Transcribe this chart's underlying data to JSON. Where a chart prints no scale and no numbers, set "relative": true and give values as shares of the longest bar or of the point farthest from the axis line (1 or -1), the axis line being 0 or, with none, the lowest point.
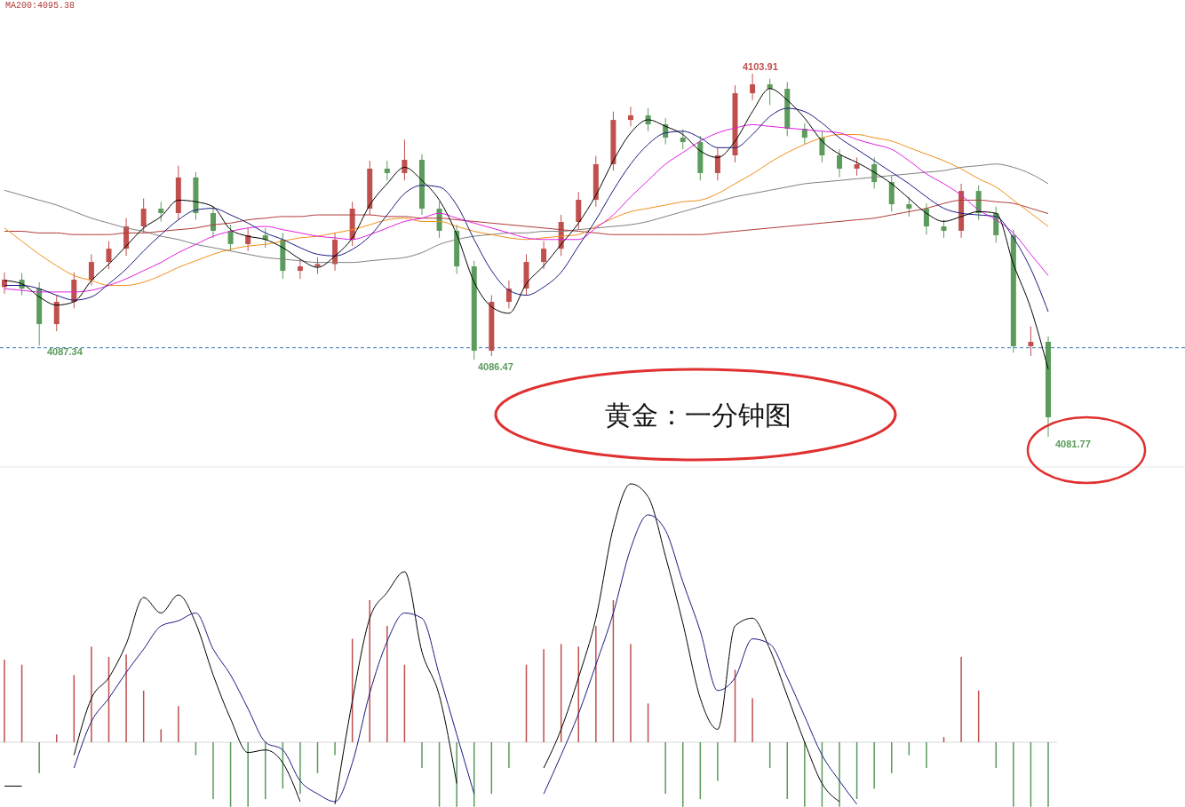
{
  "chart_data": [
    {
      "type": "candlestick",
      "categories": [
        null,
        null,
        null,
        null,
        null,
        null,
        null,
        null,
        null,
        null,
        null,
        null,
        null,
        null,
        null,
        null,
        null,
        null,
        null,
        null,
        null,
        null,
        null,
        null,
        null,
        null,
        null,
        null,
        null,
        null,
        null,
        null,
        null,
        null,
        null,
        null,
        null,
        null,
        null,
        null,
        null,
        null,
        null,
        null,
        null,
        null,
        null,
        null,
        null,
        null,
        null,
        null,
        null,
        null,
        null,
        null,
        null,
        null,
        null,
        null,
        null
      ],
      "ohlc": [
        [
          4090.9,
          4091.8,
          4090.5,
          4091.35
        ],
        [
          4091.35,
          4091.75,
          4090.4,
          4090.81
        ],
        [
          4090.81,
          4091.2,
          4087.34,
          4088.64
        ],
        [
          4088.64,
          4090.4,
          4088.2,
          4090.0
        ],
        [
          4090.0,
          4091.8,
          4089.6,
          4091.35
        ],
        [
          4091.35,
          4092.9,
          4091.0,
          4092.43
        ],
        [
          4092.43,
          4093.7,
          4092.0,
          4093.24
        ],
        [
          4093.24,
          4095.1,
          4092.8,
          4094.6
        ],
        [
          4094.6,
          4096.3,
          4094.2,
          4095.68
        ],
        [
          4095.68,
          4096.1,
          4094.9,
          4095.41
        ],
        [
          4095.41,
          4098.3,
          4095.0,
          4097.58
        ],
        [
          4097.58,
          4097.9,
          4095.0,
          4095.41
        ],
        [
          4095.41,
          4095.8,
          4093.9,
          4094.33
        ],
        [
          4094.33,
          4094.7,
          4093.1,
          4093.52
        ],
        [
          4093.52,
          4094.5,
          4093.1,
          4094.06
        ],
        [
          4094.06,
          4094.5,
          4093.3,
          4093.79
        ],
        [
          4093.79,
          4094.2,
          4091.4,
          4091.89
        ],
        [
          4091.89,
          4092.6,
          4091.4,
          4092.16
        ],
        [
          4092.16,
          4092.7,
          4091.7,
          4092.3
        ],
        [
          4092.3,
          4094.2,
          4091.9,
          4093.79
        ],
        [
          4093.79,
          4096.1,
          4093.4,
          4095.68
        ],
        [
          4095.68,
          4098.6,
          4095.3,
          4098.12
        ],
        [
          4098.12,
          4098.6,
          4097.4,
          4097.85
        ],
        [
          4097.85,
          4099.9,
          4097.4,
          4098.66
        ],
        [
          4098.66,
          4099.0,
          4095.3,
          4095.68
        ],
        [
          4095.68,
          4096.1,
          4093.9,
          4094.33
        ],
        [
          4094.33,
          4094.7,
          4091.7,
          4092.16
        ],
        [
          4092.16,
          4092.5,
          4086.47,
          4087.02
        ],
        [
          4087.02,
          4090.4,
          4086.7,
          4090.0
        ],
        [
          4090.0,
          4091.3,
          4089.6,
          4090.81
        ],
        [
          4090.81,
          4092.9,
          4090.4,
          4092.43
        ],
        [
          4092.43,
          4093.7,
          4092.0,
          4093.24
        ],
        [
          4093.24,
          4095.3,
          4092.8,
          4094.87
        ],
        [
          4094.87,
          4096.7,
          4094.4,
          4096.22
        ],
        [
          4096.22,
          4098.9,
          4095.8,
          4098.39
        ],
        [
          4098.39,
          4101.6,
          4098.0,
          4101.09
        ],
        [
          4101.09,
          4101.9,
          4100.7,
          4101.37
        ],
        [
          4101.37,
          4101.8,
          4100.4,
          4100.82
        ],
        [
          4100.82,
          4101.2,
          4099.6,
          4100.01
        ],
        [
          4100.01,
          4100.5,
          4099.3,
          4099.74
        ],
        [
          4099.74,
          4100.1,
          4097.4,
          4097.85
        ],
        [
          4097.85,
          4099.4,
          4097.4,
          4098.93
        ],
        [
          4098.93,
          4103.2,
          4098.5,
          4102.72
        ],
        [
          4102.72,
          4103.91,
          4102.3,
          4103.26
        ],
        [
          4103.26,
          4103.6,
          4102.0,
          4102.99
        ],
        [
          4102.99,
          4103.4,
          4100.1,
          4100.55
        ],
        [
          4100.55,
          4100.9,
          4099.6,
          4100.01
        ],
        [
          4100.01,
          4100.4,
          4098.5,
          4098.93
        ],
        [
          4098.93,
          4099.3,
          4097.6,
          4098.12
        ],
        [
          4098.12,
          4098.8,
          4097.7,
          4098.39
        ],
        [
          4098.39,
          4098.8,
          4096.9,
          4097.3
        ],
        [
          4097.3,
          4097.7,
          4095.5,
          4095.95
        ],
        [
          4095.95,
          4096.4,
          4095.2,
          4095.68
        ],
        [
          4095.68,
          4096.0,
          4094.1,
          4094.6
        ],
        [
          4094.6,
          4095.0,
          4093.9,
          4094.33
        ],
        [
          4094.33,
          4097.2,
          4093.9,
          4096.76
        ],
        [
          4096.76,
          4097.1,
          4095.0,
          4095.41
        ],
        [
          4095.41,
          4095.8,
          4093.6,
          4094.06
        ],
        [
          4094.06,
          4094.4,
          4086.9,
          4087.29
        ],
        [
          4087.29,
          4088.5,
          4086.7,
          4087.56
        ],
        [
          4087.56,
          4087.9,
          4081.77,
          4082.96
        ]
      ],
      "colors": [
        "#c0504d",
        "#5b9b5b",
        "#5b9b5b",
        "#c0504d",
        "#c0504d",
        "#c0504d",
        "#c0504d",
        "#c0504d",
        "#c0504d",
        "#5b9b5b",
        "#c0504d",
        "#5b9b5b",
        "#5b9b5b",
        "#5b9b5b",
        "#c0504d",
        "#5b9b5b",
        "#5b9b5b",
        "#c0504d",
        "#c0504d",
        "#c0504d",
        "#c0504d",
        "#c0504d",
        "#5b9b5b",
        "#c0504d",
        "#5b9b5b",
        "#5b9b5b",
        "#5b9b5b",
        "#5b9b5b",
        "#c0504d",
        "#c0504d",
        "#c0504d",
        "#c0504d",
        "#c0504d",
        "#c0504d",
        "#c0504d",
        "#c0504d",
        "#c0504d",
        "#5b9b5b",
        "#5b9b5b",
        "#5b9b5b",
        "#5b9b5b",
        "#c0504d",
        "#c0504d",
        "#c0504d",
        "#5b9b5b",
        "#5b9b5b",
        "#5b9b5b",
        "#5b9b5b",
        "#5b9b5b",
        "#c0504d",
        "#5b9b5b",
        "#5b9b5b",
        "#5b9b5b",
        "#5b9b5b",
        "#5b9b5b",
        "#c0504d",
        "#5b9b5b",
        "#5b9b5b",
        "#5b9b5b",
        "#c0504d",
        "#5b9b5b"
      ],
      "series": [
        {
          "type": "line",
          "color": "#808080",
          "values": [
            4096.8,
            4096.5,
            4096.2,
            4095.9,
            4095.5,
            4095.1,
            4094.8,
            4094.5,
            4094.3,
            4094.0,
            4093.8,
            4093.5,
            4093.3,
            4093.1,
            4092.9,
            4092.7,
            4092.6,
            4092.5,
            4092.4,
            4092.4,
            4092.4,
            4092.5,
            4092.6,
            4092.7,
            4093.0,
            4093.5,
            4093.8,
            4094.0,
            4094.1,
            4094.2,
            4094.2,
            4094.3,
            4094.3,
            4094.4,
            4094.5,
            4094.6,
            4094.7,
            4094.9,
            4095.2,
            4095.5,
            4095.8,
            4096.1,
            4096.4,
            4096.6,
            4096.8,
            4097.0,
            4097.2,
            4097.3,
            4097.4,
            4097.5,
            4097.6,
            4097.7,
            4097.8,
            4097.9,
            4098.0,
            4098.2,
            4098.3,
            4098.4,
            4098.2,
            4097.8,
            4097.2
          ]
        },
        {
          "type": "line",
          "color": "#b03a3a",
          "values": [
            4094.3,
            4094.3,
            4094.2,
            4094.2,
            4094.1,
            4094.1,
            4094.1,
            4094.2,
            4094.2,
            4094.3,
            4094.4,
            4094.5,
            4094.7,
            4094.8,
            4095.0,
            4095.1,
            4095.2,
            4095.2,
            4095.3,
            4095.3,
            4095.3,
            4095.3,
            4095.2,
            4095.2,
            4095.1,
            4095.1,
            4095.0,
            4094.9,
            4094.8,
            4094.7,
            4094.6,
            4094.5,
            4094.4,
            4094.3,
            4094.2,
            4094.1,
            4094.1,
            4094.1,
            4094.1,
            4094.1,
            4094.1,
            4094.2,
            4094.3,
            4094.4,
            4094.5,
            4094.6,
            4094.7,
            4094.8,
            4094.9,
            4095.0,
            4095.1,
            4095.3,
            4095.5,
            4095.7,
            4096.0,
            4096.2,
            4096.2,
            4096.1,
            4096.0,
            4095.7,
            4095.38
          ]
        },
        {
          "type": "line",
          "color": "#f0901a",
          "values": [
            4094.5,
            4093.7,
            4092.9,
            4092.2,
            4091.6,
            4091.3,
            4091.0,
            4091.0,
            4091.2,
            4091.6,
            4092.1,
            4092.5,
            4092.9,
            4093.2,
            4093.4,
            4093.5,
            4093.7,
            4093.9,
            4094.0,
            4094.2,
            4094.4,
            4094.7,
            4095.0,
            4095.1,
            4094.9,
            4094.9,
            4094.6,
            4094.3,
            4094.1,
            4093.9,
            4093.8,
            4093.9,
            4094.0,
            4094.1,
            4094.6,
            4095.1,
            4095.5,
            4095.7,
            4095.9,
            4096.1,
            4096.2,
            4096.6,
            4097.2,
            4097.8,
            4098.5,
            4099.1,
            4099.6,
            4100.0,
            4100.2,
            4100.2,
            4100.0,
            4099.8,
            4099.4,
            4099.0,
            4098.6,
            4098.1,
            4097.5,
            4097.0,
            4096.2,
            4095.4,
            4094.6
          ]
        },
        {
          "type": "line",
          "color": "#e020e0",
          "values": [
            4090.8,
            4090.7,
            4090.6,
            4090.6,
            4090.6,
            4090.7,
            4091.0,
            4091.4,
            4091.9,
            4092.4,
            4093.0,
            4093.5,
            4094.0,
            4094.3,
            4094.5,
            4094.6,
            4094.4,
            4094.2,
            4094.0,
            4093.9,
            4093.8,
            4094.1,
            4094.5,
            4094.9,
            4095.1,
            4095.4,
            4095.1,
            4094.8,
            4094.5,
            4094.2,
            4093.9,
            4093.8,
            4093.8,
            4093.8,
            4094.5,
            4095.3,
            4096.4,
            4097.4,
            4098.4,
            4099.1,
            4099.8,
            4100.3,
            4100.6,
            4100.8,
            4100.7,
            4100.6,
            4100.5,
            4100.4,
            4100.3,
            4099.9,
            4099.6,
            4099.3,
            4098.6,
            4097.8,
            4097.2,
            4096.5,
            4095.6,
            4095.0,
            4094.2,
            4092.9,
            4091.6
          ]
        },
        {
          "type": "line",
          "color": "#1a1a80",
          "values": [
            4091.0,
            4091.0,
            4090.8,
            4090.4,
            4090.1,
            4090.3,
            4091.1,
            4092.0,
            4093.1,
            4094.1,
            4095.0,
            4095.6,
            4095.7,
            4095.3,
            4094.8,
            4094.2,
            4093.8,
            4093.3,
            4092.9,
            4092.8,
            4093.2,
            4094.0,
            4095.3,
            4096.6,
            4097.1,
            4097.0,
            4095.9,
            4093.8,
            4091.9,
            4090.7,
            4090.4,
            4090.9,
            4091.8,
            4093.4,
            4095.0,
            4096.8,
            4098.4,
            4099.6,
            4100.3,
            4100.4,
            4100.0,
            4099.4,
            4099.4,
            4100.2,
            4101.3,
            4101.8,
            4101.6,
            4100.9,
            4100.0,
            4099.3,
            4098.6,
            4097.9,
            4097.2,
            4096.4,
            4095.7,
            4095.4,
            4095.3,
            4095.2,
            4093.9,
            4092.0,
            4089.4
          ]
        },
        {
          "type": "line",
          "color": "#000000",
          "values": [
            4091.3,
            4091.1,
            4090.3,
            4089.8,
            4090.0,
            4091.3,
            4092.3,
            4093.4,
            4094.5,
            4095.2,
            4096.2,
            4096.1,
            4095.8,
            4094.4,
            4094.0,
            4093.8,
            4093.3,
            4092.6,
            4092.1,
            4092.8,
            4093.9,
            4095.9,
            4097.2,
            4098.2,
            4097.4,
            4096.2,
            4094.1,
            4091.2,
            4089.7,
            4089.3,
            4091.1,
            4092.2,
            4093.5,
            4094.8,
            4096.5,
            4098.6,
            4100.3,
            4101.1,
            4100.7,
            4100.2,
            4099.2,
            4098.8,
            4099.8,
            4101.6,
            4103.0,
            4102.3,
            4101.2,
            4099.8,
            4099.0,
            4098.5,
            4097.9,
            4097.2,
            4096.3,
            4095.4,
            4094.9,
            4095.2,
            4095.5,
            4095.4,
            4092.3,
            4089.6,
            4085.9
          ]
        }
      ],
      "ref_lines": [
        {
          "axis": "y",
          "value": 4087.2,
          "color": "#3a7bbf",
          "line_style": "dashed"
        }
      ],
      "annotations": [
        "MA200:4095.38",
        "黄金：一分钟图",
        "4103.91",
        "4087.34",
        "4086.47",
        "4081.77"
      ]
    },
    {
      "type": "bar",
      "relative": true,
      "categories": [
        null,
        null,
        null,
        null,
        null,
        null,
        null,
        null,
        null,
        null,
        null,
        null,
        null,
        null,
        null,
        null,
        null,
        null,
        null,
        null,
        null,
        null,
        null,
        null,
        null,
        null,
        null,
        null,
        null,
        null,
        null,
        null,
        null,
        null,
        null,
        null,
        null,
        null,
        null,
        null,
        null,
        null,
        null,
        null,
        null,
        null,
        null,
        null,
        null,
        null,
        null,
        null,
        null,
        null,
        null,
        null,
        null,
        null,
        null,
        null,
        null
      ],
      "series": [
        {
          "type": "bar",
          "values": [
            0.32,
            0.3,
            -0.12,
            0.03,
            0.26,
            0.37,
            0.33,
            0.34,
            0.2,
            0.05,
            0.14,
            -0.05,
            -0.22,
            -0.25,
            -0.25,
            -0.22,
            -0.18,
            -0.2,
            -0.12,
            -0.05,
            0.4,
            0.55,
            0.45,
            0.3,
            -0.1,
            -0.25,
            -0.25,
            -0.25,
            -0.2,
            -0.1,
            0.3,
            0.36,
            0.38,
            0.37,
            0.45,
            0.55,
            0.38,
            0.15,
            -0.2,
            -0.25,
            -0.22,
            -0.15,
            0.28,
            0.17,
            -0.1,
            -0.22,
            -0.25,
            -0.25,
            -0.25,
            -0.22,
            -0.18,
            -0.12,
            -0.05,
            -0.1,
            0.02,
            0.33,
            0.2,
            -0.1,
            -0.25,
            -0.25,
            -0.25
          ],
          "colors": [
            "#c0504d",
            "#c0504d",
            "#5b9b5b",
            "#c0504d",
            "#c0504d",
            "#c0504d",
            "#c0504d",
            "#c0504d",
            "#c0504d",
            "#c0504d",
            "#c0504d",
            "#5b9b5b",
            "#5b9b5b",
            "#5b9b5b",
            "#5b9b5b",
            "#5b9b5b",
            "#5b9b5b",
            "#5b9b5b",
            "#5b9b5b",
            "#5b9b5b",
            "#c0504d",
            "#c0504d",
            "#c0504d",
            "#c0504d",
            "#5b9b5b",
            "#5b9b5b",
            "#5b9b5b",
            "#5b9b5b",
            "#5b9b5b",
            "#5b9b5b",
            "#c0504d",
            "#c0504d",
            "#c0504d",
            "#c0504d",
            "#c0504d",
            "#c0504d",
            "#c0504d",
            "#c0504d",
            "#5b9b5b",
            "#5b9b5b",
            "#5b9b5b",
            "#5b9b5b",
            "#c0504d",
            "#c0504d",
            "#5b9b5b",
            "#5b9b5b",
            "#5b9b5b",
            "#5b9b5b",
            "#5b9b5b",
            "#5b9b5b",
            "#5b9b5b",
            "#5b9b5b",
            "#5b9b5b",
            "#5b9b5b",
            "#c0504d",
            "#c0504d",
            "#c0504d",
            "#5b9b5b",
            "#5b9b5b",
            "#5b9b5b",
            "#5b9b5b"
          ]
        },
        {
          "type": "line",
          "color": "#000000",
          "values": [
            -0.17,
            -0.17,
            null,
            null,
            -0.05,
            0.17,
            0.25,
            0.38,
            0.56,
            0.5,
            0.57,
            0.46,
            0.26,
            0.09,
            -0.04,
            -0.03,
            -0.08,
            -0.23,
            null,
            -0.24,
            0.16,
            0.48,
            0.58,
            0.66,
            0.35,
            0.18,
            -0.16,
            null,
            null,
            null,
            null,
            -0.1,
            0.05,
            0.25,
            0.48,
            0.83,
            1,
            0.95,
            0.72,
            0.46,
            0.17,
            0.05,
            0.45,
            0.48,
            0.36,
            0.18,
            0.0,
            -0.16,
            -0.23,
            null,
            null,
            null,
            null,
            null,
            null,
            null,
            null,
            null,
            null,
            null,
            null
          ]
        },
        {
          "type": "line",
          "color": "#1a1a80",
          "values": [
            null,
            null,
            null,
            null,
            -0.1,
            0.08,
            0.17,
            0.27,
            0.36,
            0.45,
            0.47,
            0.5,
            0.36,
            0.26,
            0.13,
            0.0,
            -0.03,
            -0.15,
            -0.2,
            -0.23,
            -0.08,
            0.19,
            0.39,
            0.5,
            0.48,
            0.26,
            0.03,
            -0.2,
            null,
            null,
            null,
            -0.2,
            -0.05,
            0.11,
            0.3,
            0.5,
            0.75,
            0.88,
            0.82,
            0.62,
            0.43,
            0.2,
            0.25,
            0.4,
            0.38,
            0.25,
            0.1,
            -0.05,
            -0.15,
            -0.24,
            null,
            null,
            null,
            null,
            null,
            null,
            null,
            null,
            null,
            null,
            null
          ]
        }
      ]
    }
  ]
}
